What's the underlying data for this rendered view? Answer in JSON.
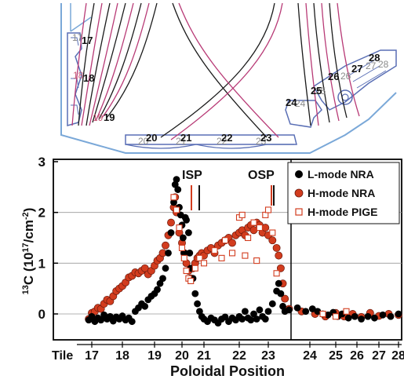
{
  "chart_data": {
    "type": "scatter",
    "ylabel_pre": "13",
    "ylabel_main": "C (10",
    "ylabel_exp": "17",
    "ylabel_unit": "/cm",
    "ylabel_exp2": "-2",
    "ylabel_close": ")",
    "xlabel": "Poloidal Position",
    "ylim": [
      -0.35,
      3.0
    ],
    "yticks": [
      "0",
      "1",
      "2",
      "3"
    ],
    "xtick_prefix": "Tile",
    "xticks": [
      "17",
      "18",
      "19",
      "20",
      "21",
      "22",
      "23",
      "24",
      "25",
      "26",
      "27",
      "28"
    ],
    "legend_position": "top-right",
    "annotations": [
      "ISP",
      "OSP"
    ],
    "series": [
      {
        "name": "L-mode NRA",
        "marker": "filled-circle",
        "color": "#000000",
        "points": [
          [
            16.9,
            -0.12
          ],
          [
            17.0,
            -0.05
          ],
          [
            17.1,
            -0.15
          ],
          [
            17.2,
            -0.08
          ],
          [
            17.3,
            -0.12
          ],
          [
            17.4,
            -0.02
          ],
          [
            17.5,
            -0.1
          ],
          [
            17.6,
            -0.05
          ],
          [
            17.7,
            -0.14
          ],
          [
            17.8,
            -0.06
          ],
          [
            17.9,
            -0.1
          ],
          [
            18.0,
            -0.04
          ],
          [
            18.1,
            -0.12
          ],
          [
            18.2,
            -0.08
          ],
          [
            18.3,
            -0.15
          ],
          [
            18.4,
            0.05
          ],
          [
            18.5,
            0.12
          ],
          [
            18.6,
            0.2
          ],
          [
            18.7,
            0.15
          ],
          [
            18.8,
            0.28
          ],
          [
            18.9,
            0.35
          ],
          [
            19.0,
            0.4
          ],
          [
            19.1,
            0.48
          ],
          [
            19.2,
            0.6
          ],
          [
            19.3,
            0.7
          ],
          [
            19.4,
            0.9
          ],
          [
            19.5,
            1.2
          ],
          [
            19.6,
            1.6
          ],
          [
            19.7,
            2.2
          ],
          [
            19.75,
            2.55
          ],
          [
            19.8,
            2.65
          ],
          [
            19.85,
            2.45
          ],
          [
            19.9,
            2.1
          ],
          [
            19.95,
            1.95
          ],
          [
            20.0,
            1.75
          ],
          [
            20.05,
            1.5
          ],
          [
            20.1,
            1.2
          ],
          [
            20.15,
            1.9
          ],
          [
            20.2,
            1.85
          ],
          [
            20.3,
            1.6
          ],
          [
            20.35,
            1.2
          ],
          [
            20.4,
            0.9
          ],
          [
            20.5,
            0.7
          ],
          [
            20.6,
            0.4
          ],
          [
            20.7,
            0.2
          ],
          [
            20.8,
            0.05
          ],
          [
            20.9,
            -0.05
          ],
          [
            21.0,
            -0.1
          ],
          [
            21.1,
            -0.15
          ],
          [
            21.2,
            -0.08
          ],
          [
            21.3,
            -0.12
          ],
          [
            21.4,
            -0.18
          ],
          [
            21.5,
            -0.1
          ],
          [
            21.6,
            -0.06
          ],
          [
            21.7,
            -0.15
          ],
          [
            21.8,
            -0.08
          ],
          [
            21.9,
            -0.12
          ],
          [
            22.0,
            -0.05
          ],
          [
            22.1,
            -0.1
          ],
          [
            22.2,
            0.05
          ],
          [
            22.3,
            -0.08
          ],
          [
            22.4,
            -0.12
          ],
          [
            22.5,
            0.0
          ],
          [
            22.6,
            -0.1
          ],
          [
            22.7,
            0.08
          ],
          [
            22.8,
            -0.05
          ],
          [
            22.9,
            -0.1
          ],
          [
            23.0,
            0.05
          ],
          [
            23.1,
            0.2
          ],
          [
            23.2,
            0.45
          ],
          [
            23.25,
            0.6
          ],
          [
            23.3,
            0.4
          ],
          [
            23.35,
            0.15
          ],
          [
            23.4,
            0.05
          ],
          [
            23.5,
            0.08
          ],
          [
            23.7,
            0.12
          ],
          [
            23.9,
            0.05
          ],
          [
            24.1,
            0.1
          ],
          [
            24.3,
            0.05
          ],
          [
            24.5,
            0.0
          ],
          [
            24.7,
            -0.02
          ],
          [
            24.9,
            0.03
          ],
          [
            25.1,
            -0.05
          ],
          [
            25.3,
            0.0
          ],
          [
            25.6,
            -0.08
          ],
          [
            25.9,
            -0.05
          ],
          [
            26.2,
            -0.1
          ],
          [
            26.5,
            -0.05
          ],
          [
            26.8,
            -0.08
          ],
          [
            27.2,
            -0.02
          ],
          [
            27.6,
            -0.05
          ],
          [
            28.0,
            0.0
          ]
        ]
      },
      {
        "name": "H-mode NRA",
        "marker": "filled-circle",
        "color": "#d23c1e",
        "points": [
          [
            16.9,
            -0.1
          ],
          [
            17.0,
            0.02
          ],
          [
            17.1,
            0.05
          ],
          [
            17.2,
            0.12
          ],
          [
            17.3,
            0.1
          ],
          [
            17.4,
            0.2
          ],
          [
            17.5,
            0.28
          ],
          [
            17.6,
            0.25
          ],
          [
            17.7,
            0.35
          ],
          [
            17.8,
            0.45
          ],
          [
            17.9,
            0.5
          ],
          [
            18.0,
            0.55
          ],
          [
            18.1,
            0.62
          ],
          [
            18.2,
            0.72
          ],
          [
            18.3,
            0.75
          ],
          [
            18.4,
            0.82
          ],
          [
            18.5,
            0.8
          ],
          [
            18.6,
            0.85
          ],
          [
            18.7,
            0.9
          ],
          [
            18.8,
            0.78
          ],
          [
            18.9,
            0.85
          ],
          [
            19.0,
            0.95
          ],
          [
            19.1,
            1.05
          ],
          [
            19.2,
            1.1
          ],
          [
            19.3,
            1.2
          ],
          [
            19.4,
            1.35
          ],
          [
            19.5,
            1.55
          ],
          [
            19.6,
            1.8
          ],
          [
            19.7,
            2.1
          ],
          [
            19.75,
            2.3
          ],
          [
            19.8,
            2.0
          ],
          [
            19.9,
            1.6
          ],
          [
            20.0,
            1.4
          ],
          [
            20.1,
            1.2
          ],
          [
            20.2,
            1.0
          ],
          [
            20.3,
            0.85
          ],
          [
            20.4,
            0.7
          ],
          [
            20.5,
            0.9
          ],
          [
            20.6,
            1.0
          ],
          [
            20.7,
            1.1
          ],
          [
            20.8,
            1.15
          ],
          [
            20.9,
            1.2
          ],
          [
            21.0,
            1.15
          ],
          [
            21.1,
            1.25
          ],
          [
            21.2,
            1.3
          ],
          [
            21.3,
            1.2
          ],
          [
            21.4,
            1.35
          ],
          [
            21.5,
            1.4
          ],
          [
            21.6,
            1.45
          ],
          [
            21.7,
            1.5
          ],
          [
            21.8,
            1.4
          ],
          [
            21.9,
            1.55
          ],
          [
            22.0,
            1.6
          ],
          [
            22.1,
            1.65
          ],
          [
            22.2,
            1.55
          ],
          [
            22.3,
            1.7
          ],
          [
            22.4,
            1.75
          ],
          [
            22.5,
            1.65
          ],
          [
            22.6,
            1.8
          ],
          [
            22.7,
            1.75
          ],
          [
            22.8,
            1.6
          ],
          [
            22.9,
            1.7
          ],
          [
            23.0,
            1.55
          ],
          [
            23.1,
            1.45
          ],
          [
            23.2,
            1.3
          ],
          [
            23.25,
            1.15
          ],
          [
            23.3,
            0.9
          ],
          [
            23.35,
            0.6
          ],
          [
            23.4,
            0.3
          ],
          [
            23.5,
            0.1
          ],
          [
            23.8,
            0.05
          ],
          [
            24.2,
            0.0
          ],
          [
            24.6,
            -0.05
          ],
          [
            25.0,
            0.02
          ],
          [
            25.4,
            -0.05
          ],
          [
            25.8,
            0.0
          ],
          [
            26.2,
            -0.06
          ],
          [
            26.6,
            0.02
          ],
          [
            27.0,
            -0.04
          ],
          [
            27.5,
            0.0
          ],
          [
            28.0,
            -0.02
          ]
        ]
      },
      {
        "name": "H-mode PIGE",
        "marker": "open-square",
        "color": "#d23c1e",
        "points": [
          [
            19.7,
            2.3
          ],
          [
            19.8,
            2.05
          ],
          [
            19.9,
            1.7
          ],
          [
            20.0,
            1.3
          ],
          [
            20.1,
            1.1
          ],
          [
            20.2,
            0.85
          ],
          [
            20.3,
            0.7
          ],
          [
            20.4,
            0.65
          ],
          [
            20.6,
            0.9
          ],
          [
            20.8,
            1.1
          ],
          [
            21.0,
            1.0
          ],
          [
            21.3,
            1.25
          ],
          [
            21.6,
            1.45
          ],
          [
            21.8,
            1.2
          ],
          [
            22.0,
            1.9
          ],
          [
            22.1,
            1.95
          ],
          [
            22.3,
            1.5
          ],
          [
            22.5,
            1.8
          ],
          [
            22.7,
            1.7
          ],
          [
            22.9,
            1.95
          ],
          [
            23.0,
            2.05
          ],
          [
            23.1,
            1.6
          ],
          [
            22.6,
            1.05
          ],
          [
            22.2,
            1.15
          ],
          [
            21.5,
            1.1
          ],
          [
            23.2,
            0.8
          ],
          [
            24.5,
            0.0
          ],
          [
            25.0,
            -0.05
          ],
          [
            25.5,
            0.05
          ]
        ]
      }
    ]
  },
  "schematic": {
    "tile_labels": [
      {
        "num": "17",
        "ghost": "17",
        "ghost_tone": "gray"
      },
      {
        "num": "18",
        "ghost": "18",
        "ghost_tone": "pink"
      },
      {
        "num": "19",
        "ghost": "19",
        "ghost_tone": "pink"
      },
      {
        "num": "20",
        "ghost": "20",
        "ghost_tone": "gray"
      },
      {
        "num": "21",
        "ghost": "21",
        "ghost_tone": "gray"
      },
      {
        "num": "22",
        "ghost": "22",
        "ghost_tone": "gray"
      },
      {
        "num": "23",
        "ghost": "23",
        "ghost_tone": "gray"
      },
      {
        "num": "24",
        "ghost": "24",
        "ghost_tone": "gray"
      },
      {
        "num": "25",
        "ghost": "25",
        "ghost_tone": "gray"
      },
      {
        "num": "26",
        "ghost": "26",
        "ghost_tone": "gray"
      },
      {
        "num": "27",
        "ghost": "27",
        "ghost_tone": "gray"
      },
      {
        "num": "28",
        "ghost": "28",
        "ghost_tone": "gray"
      }
    ],
    "colors": {
      "wall": "#7aa8d8",
      "tile": "#5a6fb5",
      "lmode_lines": "#1a1a1a",
      "hmode_lines": "#b83a76"
    }
  }
}
